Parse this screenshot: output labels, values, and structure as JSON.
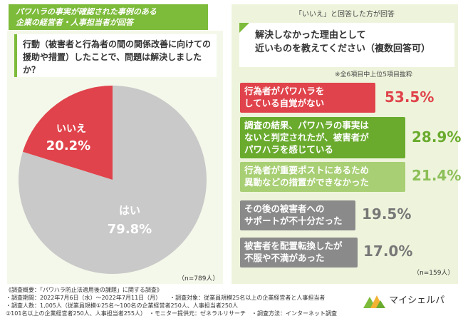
{
  "banner": {
    "line1": "パワハラの事実が確認された事例のある",
    "line2": "企業の経営者・人事担当者が回答"
  },
  "question1": {
    "text": "行動（被害者と行為者の間の関係改善に向けての援助や措置）したことで、問題は解決しましたか？"
  },
  "pie": {
    "iie_label": "いいえ",
    "iie_value": "20.2%",
    "hai_label": "はい",
    "hai_value": "79.8%",
    "n": "（n=789人）"
  },
  "right": {
    "header": "「いいえ」と回答した方が回答",
    "question2_line1": "解決しなかった理由として",
    "question2_line2": "近いものを教えてください（複数回答可）",
    "note": "※全6項目中上位5項目抜粋",
    "n": "（n=159人）"
  },
  "reasons": [
    {
      "label_line1": "行為者がパワハラを",
      "label_line2": "している自覚がない",
      "label_line3": "",
      "value": "53.5%",
      "bg": "#e0434b",
      "fg": "#ffffff",
      "pct_color": "#e0434b"
    },
    {
      "label_line1": "調査の結果、パワハラの事実は",
      "label_line2": "ないと判定されたが、被害者が",
      "label_line3": "パワハラを感じている",
      "value": "28.9%",
      "bg": "#6aab2e",
      "fg": "#ffffff",
      "pct_color": "#6aab2e"
    },
    {
      "label_line1": "行為者が重要ポストにあるため",
      "label_line2": "異動などの措置ができなかった",
      "label_line3": "",
      "value": "21.4%",
      "bg": "#a8cf74",
      "fg": "#ffffff",
      "pct_color": "#8cbf58"
    },
    {
      "label_line1": "その後の被害者への",
      "label_line2": "サポートが不十分だった",
      "label_line3": "",
      "value": "19.5%",
      "bg": "#8a8a8a",
      "fg": "#ffffff",
      "pct_color": "#777777"
    },
    {
      "label_line1": "被害者を配置転換したが",
      "label_line2": "不服や不満があった",
      "label_line3": "",
      "value": "17.0%",
      "bg": "#8a8a8a",
      "fg": "#ffffff",
      "pct_color": "#777777"
    }
  ],
  "footer": {
    "line1": "《調査概要：「パワハラ防止法適用後の課題」に関する調査》",
    "line2": "・調査期間：2022年7月6日（水）〜2022年7月11日（月）　　・調査対象：従業員規模25名以上の企業経営者と人事担当者",
    "line3": "・調査人数：1,005人（従業員規模①25名〜100名の企業経営者250人、人事担当者250人",
    "line4": "②101名以上の企業経営者250人、人事担当者255人）　・モニター提供元：ゼネラルリサーチ　・調査方法：インターネット調査"
  },
  "logo": {
    "text": "マイシェルパ"
  },
  "colors": {
    "green": "#7dbb3a",
    "red": "#e0434b",
    "gray": "#c9c9c9"
  }
}
